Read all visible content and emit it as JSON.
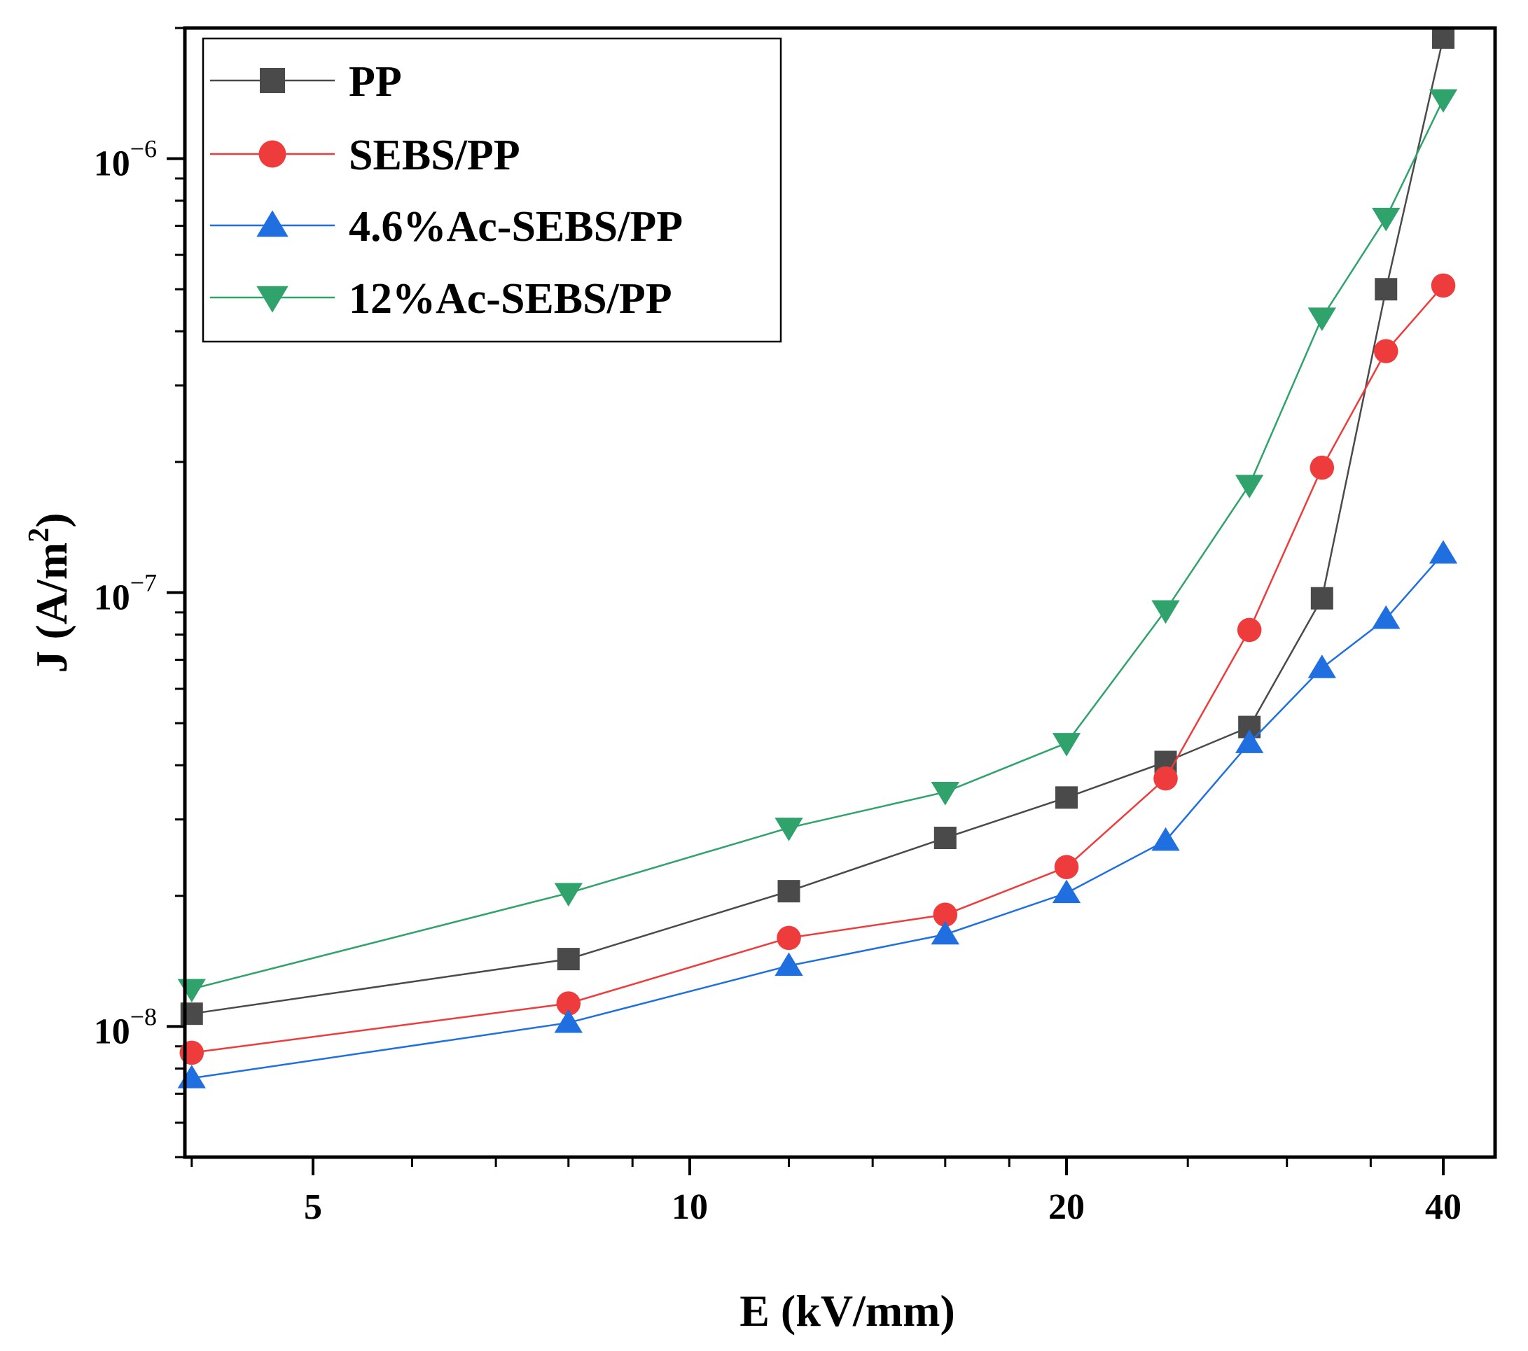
{
  "chart_data": {
    "type": "line",
    "xlabel": "E (kV/mm)",
    "ylabel_main": "J (A/m",
    "ylabel_sup": "2",
    "ylabel_close": ")",
    "x_scale": "log",
    "y_scale": "log",
    "xlim": [
      3.95,
      44
    ],
    "ylim": [
      5e-09,
      2e-06
    ],
    "x_ticks": [
      5,
      10,
      20,
      40
    ],
    "x_tick_labels": [
      "5",
      "10",
      "20",
      "40"
    ],
    "y_ticks": [
      1e-08,
      1e-07,
      1e-06
    ],
    "y_tick_base": "10",
    "y_tick_exponents": [
      "−8",
      "−7",
      "−6"
    ],
    "grid": false,
    "legend_position": "top-left",
    "x": [
      4,
      8,
      12,
      16,
      20,
      24,
      28,
      32,
      36,
      40
    ],
    "series": [
      {
        "name": "PP",
        "color": "#4a4a4a",
        "marker": "square",
        "values": [
          1.07e-08,
          1.43e-08,
          2.05e-08,
          2.72e-08,
          3.37e-08,
          4.07e-08,
          4.9e-08,
          9.7e-08,
          5e-07,
          1.9e-06
        ]
      },
      {
        "name": "SEBS/PP",
        "color": "#ee3b3b",
        "marker": "circle",
        "values": [
          8.7e-09,
          1.13e-08,
          1.6e-08,
          1.81e-08,
          2.33e-08,
          3.73e-08,
          8.2e-08,
          1.94e-07,
          3.6e-07,
          5.1e-07
        ]
      },
      {
        "name": "4.6%Ac-SEBS/PP",
        "color": "#1f6fe0",
        "marker": "triangle-up",
        "values": [
          7.6e-09,
          1.02e-08,
          1.38e-08,
          1.63e-08,
          2.03e-08,
          2.68e-08,
          4.5e-08,
          6.7e-08,
          8.7e-08,
          1.23e-07
        ]
      },
      {
        "name": "12%Ac-SEBS/PP",
        "color": "#2fa36b",
        "marker": "triangle-down",
        "values": [
          1.22e-08,
          2.03e-08,
          2.87e-08,
          3.47e-08,
          4.5e-08,
          9.1e-08,
          1.77e-07,
          4.3e-07,
          7.3e-07,
          1.37e-06
        ]
      }
    ]
  }
}
